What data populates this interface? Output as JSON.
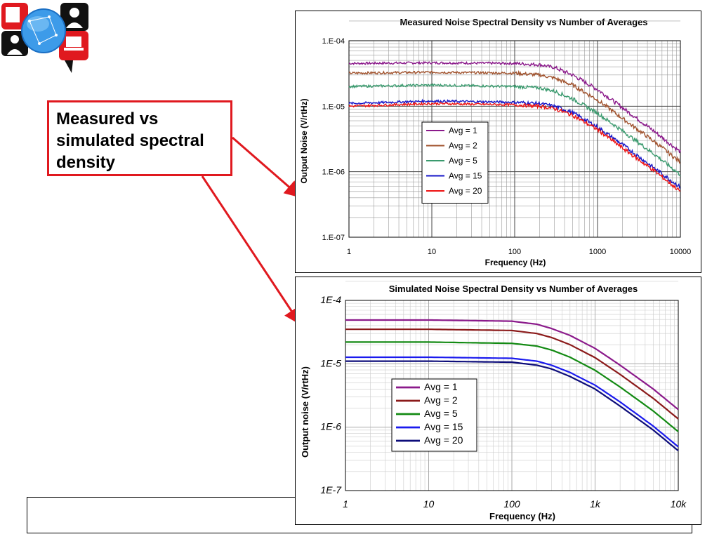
{
  "logo": {
    "icon": "network-people-globe-icon"
  },
  "callout": {
    "text": "Measured vs\nsimulated spectral\ndensity"
  },
  "colors": {
    "callout_red": "#e0191f"
  },
  "chart_data": [
    {
      "type": "line",
      "title": "Measured Noise Spectral Density vs Number of Averages",
      "xlabel": "Frequency (Hz)",
      "ylabel": "Output Noise (V/rtHz)",
      "xscale": "log",
      "yscale": "log",
      "xlim": [
        1,
        10000
      ],
      "ylim": [
        1e-07,
        0.0001
      ],
      "x_tick_labels": [
        "1",
        "10",
        "100",
        "1000",
        "10000"
      ],
      "y_tick_labels": [
        "1.E-07",
        "1.E-06",
        "1.E-05",
        "1.E-04"
      ],
      "legend_position": "center-left",
      "x": [
        1,
        10,
        100,
        200,
        300,
        500,
        1000,
        2000,
        5000,
        10000
      ],
      "series": [
        {
          "name": "Avg = 1",
          "color": "#8b1a8b",
          "values": [
            4.5e-05,
            4.6e-05,
            4.5e-05,
            4.3e-05,
            3.9e-05,
            3e-05,
            1.8e-05,
            9.5e-06,
            4e-06,
            2e-06
          ]
        },
        {
          "name": "Avg = 2",
          "color": "#a0522d",
          "values": [
            3.2e-05,
            3.3e-05,
            3.2e-05,
            3e-05,
            2.7e-05,
            2.1e-05,
            1.25e-05,
            6.5e-06,
            2.8e-06,
            1.4e-06
          ]
        },
        {
          "name": "Avg = 5",
          "color": "#3a9a6e",
          "values": [
            2e-05,
            2.1e-05,
            2e-05,
            1.9e-05,
            1.7e-05,
            1.3e-05,
            7.8e-06,
            4.2e-06,
            1.8e-06,
            9e-07
          ]
        },
        {
          "name": "Avg = 15",
          "color": "#1515c8",
          "values": [
            1.1e-05,
            1.2e-05,
            1.15e-05,
            1.1e-05,
            1e-05,
            8e-06,
            4.8e-06,
            2.6e-06,
            1.1e-06,
            5.8e-07
          ]
        },
        {
          "name": "Avg = 20",
          "color": "#ee1111",
          "values": [
            1e-05,
            1.1e-05,
            1.05e-05,
            1e-05,
            9.2e-06,
            7.3e-06,
            4.4e-06,
            2.3e-06,
            1e-06,
            5e-07
          ]
        }
      ],
      "noisy": true
    },
    {
      "type": "line",
      "title": "Simulated Noise Spectral Density vs Number of Averages",
      "xlabel": "Frequency (Hz)",
      "ylabel": "Output noise (V/rtHz)",
      "xscale": "log",
      "yscale": "log",
      "xlim": [
        1,
        10000
      ],
      "ylim": [
        1e-07,
        0.0001
      ],
      "x_tick_labels": [
        "1",
        "10",
        "100",
        "1k",
        "10k"
      ],
      "y_tick_labels": [
        "1E-7",
        "1E-6",
        "1E-5",
        "1E-4"
      ],
      "legend_position": "center-left",
      "x": [
        1,
        10,
        100,
        200,
        300,
        500,
        1000,
        2000,
        5000,
        10000
      ],
      "series": [
        {
          "name": "Avg = 1",
          "color": "#8b1a8b",
          "values": [
            4.9e-05,
            4.9e-05,
            4.7e-05,
            4.2e-05,
            3.6e-05,
            2.8e-05,
            1.75e-05,
            9.5e-06,
            4e-06,
            1.9e-06
          ]
        },
        {
          "name": "Avg = 2",
          "color": "#8b1a1a",
          "values": [
            3.5e-05,
            3.5e-05,
            3.35e-05,
            3e-05,
            2.6e-05,
            2e-05,
            1.25e-05,
            6.8e-06,
            2.85e-06,
            1.35e-06
          ]
        },
        {
          "name": "Avg = 5",
          "color": "#138a13",
          "values": [
            2.2e-05,
            2.2e-05,
            2.1e-05,
            1.9e-05,
            1.65e-05,
            1.27e-05,
            7.9e-06,
            4.3e-06,
            1.8e-06,
            8.5e-07
          ]
        },
        {
          "name": "Avg = 15",
          "color": "#1a1aee",
          "values": [
            1.27e-05,
            1.27e-05,
            1.22e-05,
            1.1e-05,
            9.5e-06,
            7.3e-06,
            4.6e-06,
            2.5e-06,
            1.04e-06,
            4.9e-07
          ]
        },
        {
          "name": "Avg = 20",
          "color": "#0d0d7a",
          "values": [
            1.1e-05,
            1.1e-05,
            1.06e-05,
            9.5e-06,
            8.3e-06,
            6.3e-06,
            4e-06,
            2.15e-06,
            9e-07,
            4.25e-07
          ]
        }
      ],
      "noisy": false
    }
  ]
}
